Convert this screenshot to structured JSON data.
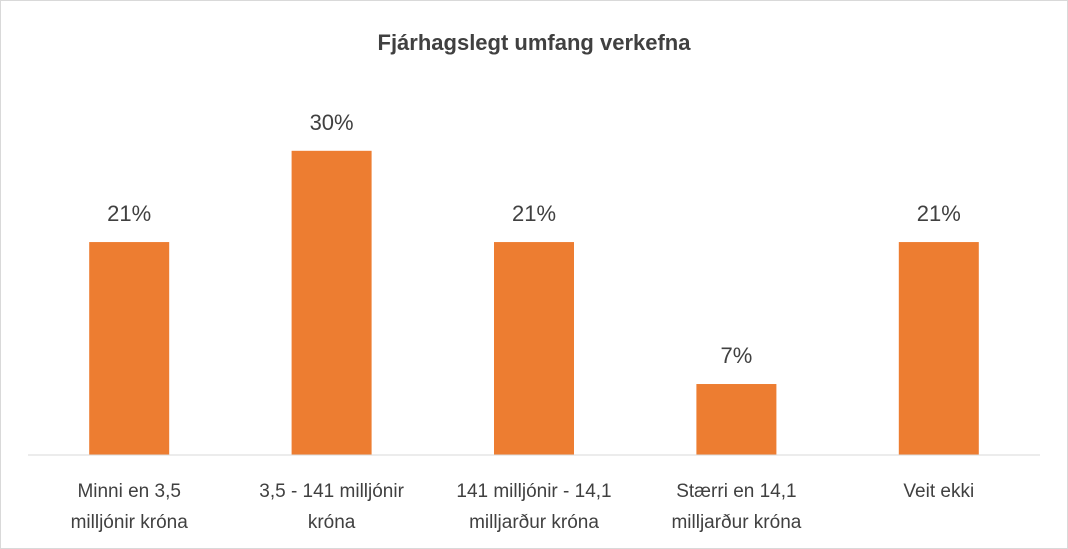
{
  "chart_data": {
    "type": "bar",
    "title": "Fjárhagslegt umfang verkefna",
    "categories": [
      [
        "Minni en 3,5",
        "milljónir króna"
      ],
      [
        "3,5 - 141 milljónir",
        "króna"
      ],
      [
        "141 milljónir - 14,1",
        "milljarður króna"
      ],
      [
        "Stærri en 14,1",
        "milljarður króna"
      ],
      [
        "Veit ekki"
      ]
    ],
    "values": [
      21,
      30,
      21,
      7,
      21
    ],
    "data_labels": [
      "21%",
      "30%",
      "21%",
      "7%",
      "21%"
    ],
    "unit": "%",
    "ylim": [
      0,
      35
    ],
    "grid": false,
    "legend": "none",
    "bar_color": "#ED7D31",
    "text_color": "#404040",
    "axis_color": "#d9d9d9"
  }
}
